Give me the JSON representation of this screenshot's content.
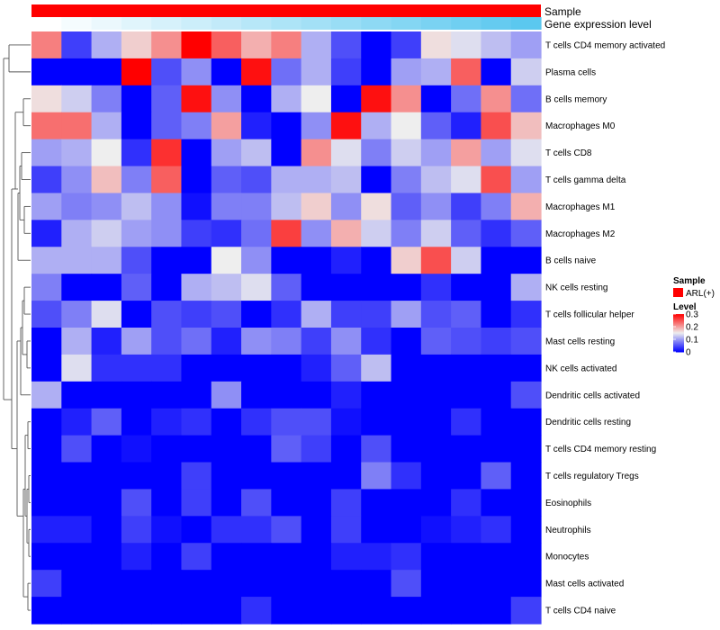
{
  "chart_data": {
    "type": "heatmap",
    "annotation_rows": [
      "Sample",
      "Gene expression level"
    ],
    "sample_group_label": "ARL(+)",
    "gene_expression_gradient": [
      "#ffffff",
      "#5bc8ef"
    ],
    "row_labels": [
      "T cells CD4 memory activated",
      "Plasma cells",
      "B cells memory",
      "Macrophages M0",
      "T cells CD8",
      "T cells gamma delta",
      "Macrophages M1",
      "Macrophages M2",
      "B cells naive",
      "NK cells resting",
      "T cells follicular helper",
      "Mast cells resting",
      "NK cells activated",
      "Dendritic cells activated",
      "Dendritic cells resting",
      "T cells CD4 memory resting",
      "T cells regulatory  Tregs",
      "Eosinophils",
      "Neutrophils",
      "Monocytes",
      "Mast cells activated",
      "T cells CD4 naive"
    ],
    "values": [
      [
        0.22,
        0.04,
        0.11,
        0.17,
        0.21,
        0.3,
        0.24,
        0.19,
        0.22,
        0.11,
        0.05,
        0.0,
        0.04,
        0.16,
        0.14,
        0.12,
        0.1
      ],
      [
        0.0,
        0.0,
        0.0,
        0.3,
        0.05,
        0.09,
        0.0,
        0.29,
        0.07,
        0.11,
        0.04,
        0.0,
        0.1,
        0.11,
        0.24,
        0.0,
        0.13
      ],
      [
        0.16,
        0.13,
        0.08,
        0.0,
        0.06,
        0.29,
        0.09,
        0.0,
        0.11,
        0.15,
        0.0,
        0.29,
        0.21,
        0.0,
        0.07,
        0.21,
        0.07
      ],
      [
        0.23,
        0.23,
        0.11,
        0.0,
        0.06,
        0.08,
        0.2,
        0.02,
        0.0,
        0.09,
        0.29,
        0.11,
        0.15,
        0.06,
        0.02,
        0.25,
        0.18
      ],
      [
        0.1,
        0.11,
        0.15,
        0.03,
        0.27,
        0.0,
        0.1,
        0.12,
        0.0,
        0.21,
        0.14,
        0.08,
        0.13,
        0.1,
        0.2,
        0.1,
        0.14
      ],
      [
        0.04,
        0.09,
        0.18,
        0.08,
        0.24,
        0.0,
        0.06,
        0.05,
        0.11,
        0.11,
        0.12,
        0.0,
        0.08,
        0.12,
        0.14,
        0.25,
        0.1
      ],
      [
        0.1,
        0.08,
        0.09,
        0.12,
        0.09,
        0.01,
        0.08,
        0.08,
        0.12,
        0.17,
        0.09,
        0.16,
        0.06,
        0.09,
        0.04,
        0.08,
        0.19
      ],
      [
        0.02,
        0.11,
        0.13,
        0.1,
        0.09,
        0.04,
        0.03,
        0.07,
        0.26,
        0.09,
        0.19,
        0.13,
        0.08,
        0.13,
        0.06,
        0.03,
        0.06
      ],
      [
        0.11,
        0.11,
        0.11,
        0.05,
        0.0,
        0.0,
        0.15,
        0.09,
        0.0,
        0.0,
        0.02,
        0.0,
        0.17,
        0.25,
        0.13,
        0.0,
        0.0
      ],
      [
        0.08,
        0.0,
        0.0,
        0.06,
        0.0,
        0.11,
        0.12,
        0.14,
        0.06,
        0.0,
        0.0,
        0.0,
        0.0,
        0.03,
        0.0,
        0.0,
        0.11
      ],
      [
        0.05,
        0.08,
        0.14,
        0.0,
        0.05,
        0.04,
        0.05,
        0.0,
        0.03,
        0.11,
        0.04,
        0.04,
        0.1,
        0.05,
        0.06,
        0.0,
        0.03
      ],
      [
        0.0,
        0.11,
        0.02,
        0.1,
        0.05,
        0.07,
        0.02,
        0.09,
        0.08,
        0.04,
        0.09,
        0.03,
        0.0,
        0.06,
        0.05,
        0.04,
        0.05
      ],
      [
        0.0,
        0.14,
        0.03,
        0.03,
        0.03,
        0.0,
        0.0,
        0.0,
        0.0,
        0.02,
        0.06,
        0.12,
        0.0,
        0.0,
        0.0,
        0.0,
        0.0
      ],
      [
        0.11,
        0.0,
        0.0,
        0.0,
        0.0,
        0.0,
        0.09,
        0.0,
        0.0,
        0.0,
        0.02,
        0.0,
        0.0,
        0.0,
        0.0,
        0.0,
        0.05
      ],
      [
        0.0,
        0.02,
        0.06,
        0.0,
        0.02,
        0.03,
        0.0,
        0.03,
        0.05,
        0.05,
        0.01,
        0.0,
        0.0,
        0.0,
        0.03,
        0.0,
        0.0
      ],
      [
        0.0,
        0.05,
        0.0,
        0.01,
        0.0,
        0.0,
        0.0,
        0.0,
        0.06,
        0.04,
        0.0,
        0.05,
        0.0,
        0.0,
        0.0,
        0.0,
        0.0
      ],
      [
        0.0,
        0.0,
        0.0,
        0.0,
        0.0,
        0.04,
        0.0,
        0.0,
        0.0,
        0.0,
        0.0,
        0.08,
        0.03,
        0.0,
        0.0,
        0.06,
        0.0
      ],
      [
        0.0,
        0.0,
        0.0,
        0.05,
        0.0,
        0.04,
        0.0,
        0.05,
        0.0,
        0.0,
        0.04,
        0.0,
        0.0,
        0.0,
        0.03,
        0.0,
        0.0
      ],
      [
        0.02,
        0.02,
        0.0,
        0.04,
        0.01,
        0.0,
        0.03,
        0.03,
        0.05,
        0.0,
        0.04,
        0.0,
        0.0,
        0.01,
        0.02,
        0.03,
        0.0
      ],
      [
        0.0,
        0.0,
        0.0,
        0.02,
        0.0,
        0.04,
        0.0,
        0.0,
        0.0,
        0.0,
        0.02,
        0.02,
        0.03,
        0.0,
        0.0,
        0.0,
        0.0
      ],
      [
        0.04,
        0.0,
        0.0,
        0.0,
        0.0,
        0.0,
        0.0,
        0.0,
        0.0,
        0.0,
        0.0,
        0.0,
        0.05,
        0.0,
        0.0,
        0.0,
        0.0
      ],
      [
        0.0,
        0.0,
        0.0,
        0.0,
        0.0,
        0.0,
        0.0,
        0.03,
        0.0,
        0.0,
        0.0,
        0.0,
        0.0,
        0.0,
        0.0,
        0.0,
        0.04
      ]
    ],
    "color_scale": {
      "min": 0,
      "max": 0.3,
      "stops": [
        {
          "value": 0,
          "color": "#0000ff"
        },
        {
          "value": 0.15,
          "color": "#eeeeee"
        },
        {
          "value": 0.3,
          "color": "#ff0000"
        }
      ]
    },
    "legend": {
      "sample_title": "Sample",
      "sample_item": "ARL(+)",
      "sample_color": "#ff0000",
      "level_title": "Level",
      "ticks": [
        0.3,
        0.2,
        0.1,
        0
      ],
      "tick_labels": [
        "0.3",
        "0.2",
        "0.1",
        "0"
      ]
    }
  }
}
